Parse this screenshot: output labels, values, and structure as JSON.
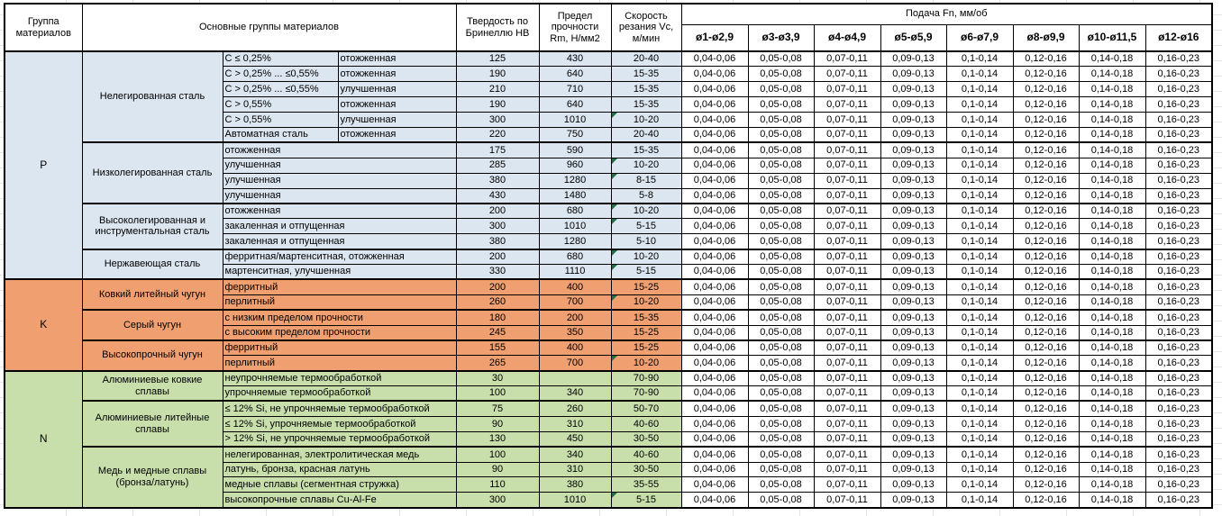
{
  "header": {
    "col_group": "Группа материалов",
    "col_materials": "Основные группы материалов",
    "col_hardness": "Твердость по Бринеллю HB",
    "col_strength": "Предел прочности Rm, Н/мм2",
    "col_speed": "Скорость резания Vc, м/мин",
    "feed_title": "Подача Fn, мм/об",
    "feed_cols": [
      "ø1-ø2,9",
      "ø3-ø3,9",
      "ø4-ø4,9",
      "ø5-ø5,9",
      "ø6-ø7,9",
      "ø8-ø9,9",
      "ø10-ø11,5",
      "ø12-ø16"
    ]
  },
  "feed_values": [
    "0,04-0,06",
    "0,05-0,08",
    "0,07-0,11",
    "0,09-0,13",
    "0,1-0,14",
    "0,12-0,16",
    "0,14-0,18",
    "0,16-0,23"
  ],
  "flag_color": "#1E7145",
  "groups": [
    {
      "code": "P",
      "color": "#DCE6F1",
      "subgroups": [
        {
          "name": "Нелегированная сталь",
          "rows": [
            {
              "cells": [
                "С ≤ 0,25%",
                "отожженная"
              ],
              "hb": "125",
              "rm": "430",
              "vc": "20-40",
              "flag": false
            },
            {
              "cells": [
                "С > 0,25% ... ≤0,55%",
                "отожженная"
              ],
              "hb": "190",
              "rm": "640",
              "vc": "15-35",
              "flag": false
            },
            {
              "cells": [
                "С > 0,25% ... ≤0,55%",
                "улучшенная"
              ],
              "hb": "210",
              "rm": "710",
              "vc": "15-35",
              "flag": false
            },
            {
              "cells": [
                "С > 0,55%",
                "отожженная"
              ],
              "hb": "190",
              "rm": "640",
              "vc": "15-35",
              "flag": false
            },
            {
              "cells": [
                "С > 0,55%",
                "улучшенная"
              ],
              "hb": "300",
              "rm": "1010",
              "vc": "10-20",
              "flag": true
            },
            {
              "cells": [
                "Автоматная сталь",
                "отожженная"
              ],
              "hb": "220",
              "rm": "750",
              "vc": "20-40",
              "flag": false
            }
          ]
        },
        {
          "name": "Низколегированная сталь",
          "rows": [
            {
              "cells": [
                "отожженная"
              ],
              "hb": "175",
              "rm": "590",
              "vc": "15-35",
              "flag": false
            },
            {
              "cells": [
                "улучшенная"
              ],
              "hb": "285",
              "rm": "960",
              "vc": "10-20",
              "flag": true
            },
            {
              "cells": [
                "улучшенная"
              ],
              "hb": "380",
              "rm": "1280",
              "vc": "8-15",
              "flag": true
            },
            {
              "cells": [
                "улучшенная"
              ],
              "hb": "430",
              "rm": "1480",
              "vc": "5-8",
              "flag": false
            }
          ]
        },
        {
          "name": "Высоколегированная и инструментальная сталь",
          "rows": [
            {
              "cells": [
                "отожженная"
              ],
              "hb": "200",
              "rm": "680",
              "vc": "10-20",
              "flag": true
            },
            {
              "cells": [
                "закаленная и отпущенная"
              ],
              "hb": "300",
              "rm": "1010",
              "vc": "5-15",
              "flag": true
            },
            {
              "cells": [
                "закаленная и отпущенная"
              ],
              "hb": "380",
              "rm": "1280",
              "vc": "5-10",
              "flag": false
            }
          ]
        },
        {
          "name": "Нержавеющая сталь",
          "rows": [
            {
              "cells": [
                "ферритная/мартенситная, отожженная"
              ],
              "hb": "200",
              "rm": "680",
              "vc": "10-20",
              "flag": true
            },
            {
              "cells": [
                "мартенситная, улучшенная"
              ],
              "hb": "330",
              "rm": "1110",
              "vc": "5-15",
              "flag": true
            }
          ]
        }
      ]
    },
    {
      "code": "K",
      "color": "#F0A070",
      "subgroups": [
        {
          "name": "Ковкий литейный чугун",
          "rows": [
            {
              "cells": [
                "ферритный"
              ],
              "hb": "200",
              "rm": "400",
              "vc": "15-25",
              "flag": false
            },
            {
              "cells": [
                "перлитный"
              ],
              "hb": "260",
              "rm": "700",
              "vc": "10-20",
              "flag": true
            }
          ]
        },
        {
          "name": "Серый чугун",
          "rows": [
            {
              "cells": [
                "с низким пределом прочности"
              ],
              "hb": "180",
              "rm": "200",
              "vc": "15-35",
              "flag": false
            },
            {
              "cells": [
                "с высоким пределом прочности"
              ],
              "hb": "245",
              "rm": "350",
              "vc": "15-25",
              "flag": false
            }
          ]
        },
        {
          "name": "Высокопрочный чугун",
          "rows": [
            {
              "cells": [
                "ферритный"
              ],
              "hb": "155",
              "rm": "400",
              "vc": "15-25",
              "flag": false
            },
            {
              "cells": [
                "перлитный"
              ],
              "hb": "265",
              "rm": "700",
              "vc": "10-20",
              "flag": true
            }
          ]
        }
      ]
    },
    {
      "code": "N",
      "color": "#C8DFAC",
      "subgroups": [
        {
          "name": "Алюминиевые ковкие сплавы",
          "rows": [
            {
              "cells": [
                "неупрочняемые термообработкой"
              ],
              "hb": "30",
              "rm": "",
              "vc": "70-90",
              "flag": false
            },
            {
              "cells": [
                "упрочняемые термообработкой"
              ],
              "hb": "100",
              "rm": "340",
              "vc": "70-90",
              "flag": false
            }
          ]
        },
        {
          "name": "Алюминиевые литейные сплавы",
          "rows": [
            {
              "cells": [
                "≤ 12% Si, не упрочняемые термообработкой"
              ],
              "hb": "75",
              "rm": "260",
              "vc": "50-70",
              "flag": false
            },
            {
              "cells": [
                "≤ 12% Si, упрочняемые термообработкой"
              ],
              "hb": "90",
              "rm": "310",
              "vc": "40-60",
              "flag": false
            },
            {
              "cells": [
                "> 12% Si, не упрочняемые термообработкой"
              ],
              "hb": "130",
              "rm": "450",
              "vc": "30-50",
              "flag": false
            }
          ]
        },
        {
          "name": "Медь и медные сплавы (бронза/латунь)",
          "rows": [
            {
              "cells": [
                "нелегированная, электролитическая медь"
              ],
              "hb": "100",
              "rm": "340",
              "vc": "40-60",
              "flag": false
            },
            {
              "cells": [
                "латунь, бронза, красная латунь"
              ],
              "hb": "90",
              "rm": "310",
              "vc": "30-50",
              "flag": false
            },
            {
              "cells": [
                "медные сплавы (сегментная стружка)"
              ],
              "hb": "110",
              "rm": "380",
              "vc": "35-55",
              "flag": false
            },
            {
              "cells": [
                "высокопрочные сплавы Cu-Al-Fe"
              ],
              "hb": "300",
              "rm": "1010",
              "vc": "5-15",
              "flag": true
            }
          ]
        }
      ]
    }
  ]
}
